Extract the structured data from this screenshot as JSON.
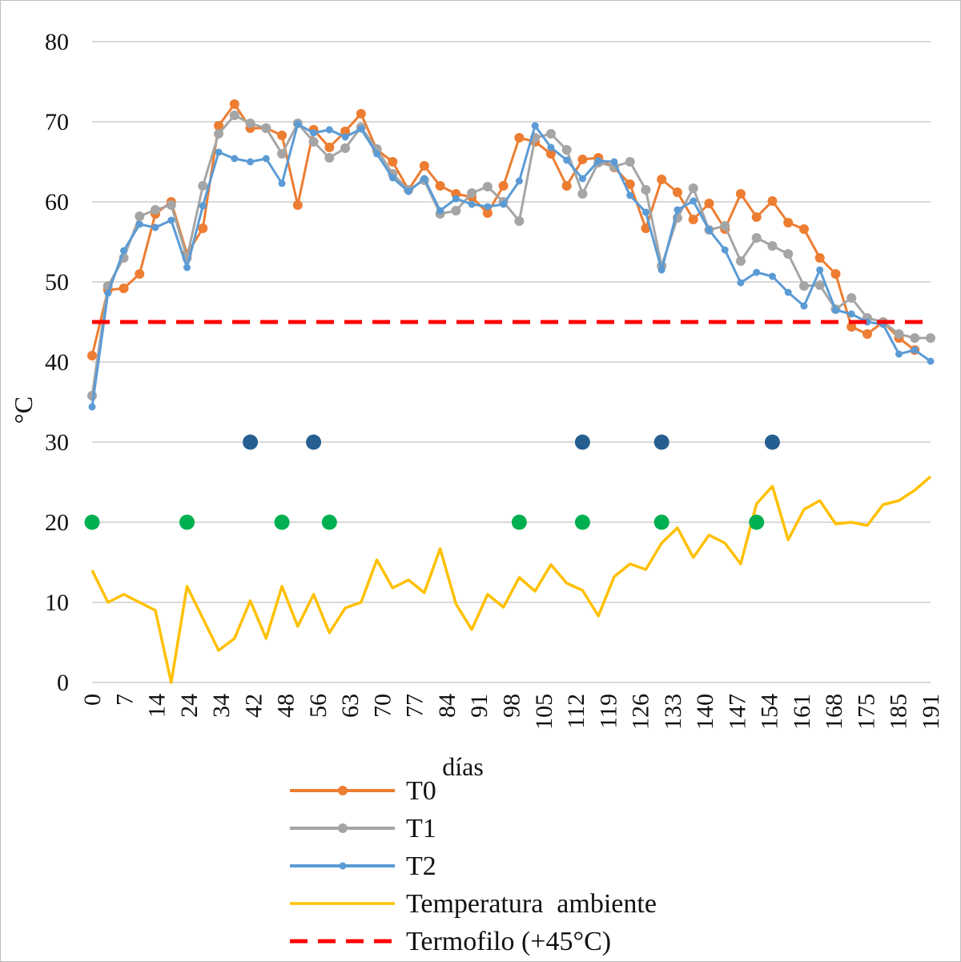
{
  "chart_data": {
    "type": "line",
    "title": "",
    "xlabel": "días",
    "ylabel": "°C",
    "ylim": [
      0,
      80
    ],
    "y_ticks": [
      "0",
      "10",
      "20",
      "30",
      "40",
      "50",
      "60",
      "70",
      "80"
    ],
    "x_tick_labels": [
      "0",
      "7",
      "14",
      "24",
      "34",
      "42",
      "48",
      "56",
      "63",
      "70",
      "77",
      "84",
      "91",
      "98",
      "105",
      "112",
      "119",
      "126",
      "133",
      "140",
      "147",
      "154",
      "161",
      "168",
      "175",
      "185",
      "191"
    ],
    "grid": true,
    "legend_position": "bottom",
    "series": [
      {
        "name": "T0",
        "color": "#ED7D31",
        "marker": "circle",
        "values": [
          40.8,
          49.0,
          49.2,
          51.0,
          58.5,
          60.0,
          53.5,
          56.7,
          69.5,
          72.2,
          69.2,
          69.2,
          68.3,
          59.6,
          69.0,
          66.8,
          68.8,
          71.0,
          66.5,
          65.0,
          61.5,
          64.5,
          62.0,
          61.0,
          60.6,
          58.6,
          62.0,
          68.0,
          67.5,
          66.0,
          62.0,
          65.3,
          65.5,
          64.3,
          62.2,
          56.7,
          62.8,
          61.2,
          57.8,
          59.8,
          56.6,
          61.0,
          58.1,
          60.1,
          57.4,
          56.6,
          53.0,
          51.0,
          44.4,
          43.5,
          45.0,
          43.0,
          41.5
        ]
      },
      {
        "name": "T1",
        "color": "#A5A5A5",
        "marker": "circle",
        "values": [
          35.8,
          49.5,
          53.0,
          58.2,
          59.0,
          59.6,
          53.0,
          62.0,
          68.5,
          70.8,
          69.8,
          69.2,
          66.0,
          69.8,
          67.5,
          65.5,
          66.7,
          69.3,
          66.6,
          63.5,
          61.5,
          62.7,
          58.5,
          58.9,
          61.1,
          61.9,
          60.0,
          57.6,
          68.0,
          68.5,
          66.5,
          61.0,
          64.9,
          64.4,
          65.0,
          61.5,
          52.0,
          58.0,
          61.7,
          56.5,
          57.0,
          52.6,
          55.5,
          54.5,
          53.5,
          49.5,
          49.6,
          46.6,
          48.0,
          45.5,
          45.0,
          43.5,
          43.0,
          43.0
        ]
      },
      {
        "name": "T2",
        "color": "#5B9BD5",
        "marker": "small-circle",
        "values": [
          34.4,
          48.6,
          53.9,
          57.2,
          56.8,
          57.7,
          51.8,
          59.5,
          66.2,
          65.4,
          65.0,
          65.4,
          62.3,
          69.7,
          68.6,
          69.0,
          68.1,
          69.1,
          66.0,
          63.0,
          61.3,
          62.9,
          58.9,
          60.4,
          59.7,
          59.4,
          59.7,
          62.6,
          69.5,
          66.8,
          65.2,
          62.9,
          65.1,
          65.0,
          60.8,
          58.7,
          51.5,
          59.0,
          60.1,
          56.5,
          54.0,
          49.9,
          51.2,
          50.7,
          48.7,
          47.0,
          51.5,
          46.5,
          46.0,
          45.0,
          44.7,
          41.0,
          41.5,
          40.1
        ]
      },
      {
        "name": "Temperatura  ambiente",
        "color": "#FFC000",
        "marker": "none",
        "values": [
          14.0,
          10.0,
          11.0,
          10.0,
          9.0,
          0.0,
          12.0,
          8.0,
          4.0,
          5.5,
          10.2,
          5.5,
          12.0,
          7.0,
          11.0,
          6.2,
          9.3,
          10.0,
          15.3,
          11.8,
          12.8,
          11.2,
          16.7,
          9.8,
          6.6,
          11.0,
          9.4,
          13.1,
          11.4,
          14.7,
          12.4,
          11.5,
          8.3,
          13.2,
          14.8,
          14.1,
          17.4,
          19.3,
          15.6,
          18.4,
          17.4,
          14.8,
          22.3,
          24.5,
          17.8,
          21.6,
          22.7,
          19.8,
          20.0,
          19.6,
          22.2,
          22.7,
          24.0,
          25.7
        ]
      },
      {
        "name": "Termofilo (+45°C)",
        "color": "#FF0000",
        "marker": "dashed",
        "values": [
          45,
          45
        ]
      }
    ],
    "event_markers": [
      {
        "color": "#255E91",
        "y": 30,
        "x_index": [
          10,
          14,
          31,
          36,
          43
        ]
      },
      {
        "color": "#00B050",
        "y": 20,
        "x_index": [
          0,
          6,
          12,
          15,
          27,
          31,
          36,
          42
        ]
      }
    ]
  }
}
